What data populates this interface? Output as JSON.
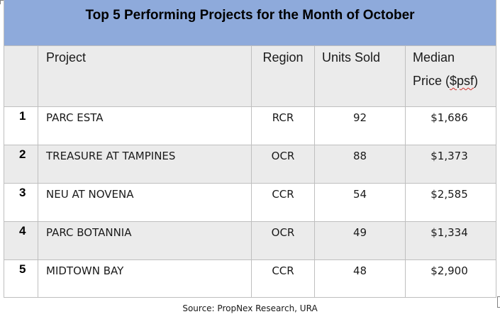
{
  "title": "Top 5 Performing Projects for the Month of October",
  "columns": {
    "project": "Project",
    "region": "Region",
    "units_sold": "Units Sold",
    "median_line1": "Median",
    "median_line2_pre": "Price (",
    "median_line2_word": "$psf",
    "median_line2_post": ")"
  },
  "rows": [
    {
      "rank": "1",
      "project": "PARC ESTA",
      "region": "RCR",
      "units": "92",
      "price": "$1,686"
    },
    {
      "rank": "2",
      "project": "TREASURE AT TAMPINES",
      "region": "OCR",
      "units": "88",
      "price": "$1,373"
    },
    {
      "rank": "3",
      "project": "NEU AT NOVENA",
      "region": "CCR",
      "units": "54",
      "price": "$2,585"
    },
    {
      "rank": "4",
      "project": "PARC BOTANNIA",
      "region": "OCR",
      "units": "49",
      "price": "$1,334"
    },
    {
      "rank": "5",
      "project": "MIDTOWN BAY",
      "region": "CCR",
      "units": "48",
      "price": "$2,900"
    }
  ],
  "source": "Source: PropNex Research, URA",
  "colors": {
    "title_band": "#8eaadb",
    "row_shade": "#ebebeb",
    "grid": "#bfbfbf"
  }
}
